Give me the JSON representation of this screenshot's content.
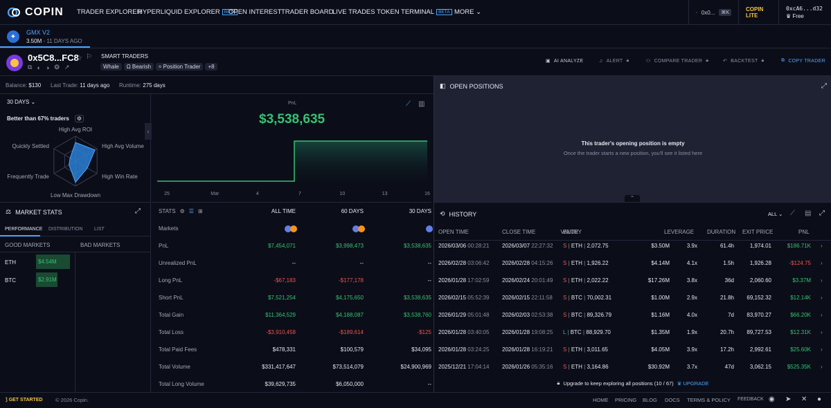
{
  "nav": {
    "brand": "COPIN",
    "items": [
      "TRADER EXPLORER",
      "HYPERLIQUID EXPLORER",
      "OPEN INTEREST",
      "TRADER BOARD",
      "LIVE TRADES",
      "TOKEN TERMINAL",
      "MORE"
    ],
    "beta": "BETA",
    "search": "0x0...",
    "shortcut": "⌘K",
    "lite": "COPIN LITE",
    "wallet": "0xcA6...d32",
    "plan": "Free"
  },
  "protocol": {
    "name": "GMX V2",
    "volume": "3.50M",
    "ago": "11 DAYS AGO"
  },
  "trader": {
    "address": "0x5C8...FC8",
    "badge": "SMART TRADERS",
    "tags": [
      "Whale",
      "Ω Bearish",
      "≈ Position Trader"
    ],
    "more_tags": "+8"
  },
  "actions": [
    "AI ANALYZE",
    "ALERT",
    "COMPARE TRADER",
    "BACKTEST",
    "COPY TRADER"
  ],
  "balance": {
    "balance_label": "Balance:",
    "balance": "$130",
    "last_label": "Last Trade:",
    "last": "11 days ago",
    "runtime_label": "Runtime:",
    "runtime": "275 days"
  },
  "period": "30 DAYS",
  "radar": {
    "better": "Better than 67% traders",
    "axes": [
      "High Avg ROI",
      "High Avg Volume",
      "High Win Rate",
      "Low Max Drawdown",
      "Frequently Trade",
      "Quickly Settled"
    ],
    "values": [
      0.75,
      0.9,
      0.55,
      0.85,
      0.3,
      0.25
    ]
  },
  "pnl_chart": {
    "label": "PnL",
    "value": "$3,538,635",
    "ticks": [
      "25",
      "Mar",
      "4",
      "7",
      "10",
      "13",
      "16"
    ]
  },
  "chart_data": {
    "type": "area",
    "title": "PnL",
    "x": [
      "25",
      "Mar",
      "4",
      "7",
      "10",
      "13",
      "16"
    ],
    "values": [
      0,
      0,
      0,
      3538635,
      3538635,
      3538635,
      3538635
    ],
    "step_after_index": 3
  },
  "open_positions": {
    "title": "OPEN POSITIONS",
    "empty": "This trader's opening position is empty",
    "hint": "Once the trader starts a new position, you'll see it listed here"
  },
  "market_stats": {
    "title": "MARKET STATS",
    "tabs": [
      "PERFORMANCE",
      "DISTRIBUTION",
      "LIST"
    ],
    "good": "GOOD MARKETS",
    "bad": "BAD MARKETS",
    "rows": [
      {
        "sym": "ETH",
        "val": "$4.54M"
      },
      {
        "sym": "BTC",
        "val": "$2.91M"
      }
    ]
  },
  "stats": {
    "title": "STATS",
    "cols": [
      "ALL TIME",
      "60 DAYS",
      "30 DAYS"
    ],
    "rows": [
      {
        "label": "Markets",
        "v": [
          "",
          "",
          ""
        ]
      },
      {
        "label": "PnL",
        "v": [
          "$7,454,071",
          "$3,998,473",
          "$3,538,635"
        ],
        "c": [
          "pos",
          "pos",
          "pos"
        ]
      },
      {
        "label": "Unrealized PnL",
        "v": [
          "--",
          "--",
          "--"
        ],
        "c": [
          "",
          "",
          ""
        ]
      },
      {
        "label": "Long PnL",
        "v": [
          "-$67,183",
          "-$177,178",
          "--"
        ],
        "c": [
          "neg",
          "neg",
          ""
        ]
      },
      {
        "label": "Short PnL",
        "v": [
          "$7,521,254",
          "$4,175,650",
          "$3,538,635"
        ],
        "c": [
          "pos",
          "pos",
          "pos"
        ]
      },
      {
        "label": "Total Gain",
        "v": [
          "$11,364,529",
          "$4,188,087",
          "$3,538,760"
        ],
        "c": [
          "pos",
          "pos",
          "pos"
        ]
      },
      {
        "label": "Total Loss",
        "v": [
          "-$3,910,458",
          "-$189,614",
          "-$125"
        ],
        "c": [
          "neg",
          "neg",
          "neg"
        ]
      },
      {
        "label": "Total Paid Fees",
        "v": [
          "$478,331",
          "$100,579",
          "$34,095"
        ],
        "c": [
          "",
          "",
          ""
        ]
      },
      {
        "label": "Total Volume",
        "v": [
          "$331,417,647",
          "$73,514,079",
          "$24,900,969"
        ],
        "c": [
          "",
          "",
          ""
        ]
      },
      {
        "label": "Total Long Volume",
        "v": [
          "$39,629,735",
          "$6,050,000",
          "--"
        ],
        "c": [
          "",
          "",
          ""
        ]
      }
    ]
  },
  "history": {
    "title": "HISTORY",
    "filter": "ALL",
    "cols": [
      "OPEN TIME",
      "CLOSE TIME",
      "ENTRY",
      "VALUE",
      "LEVERAGE",
      "DURATION",
      "EXIT PRICE",
      "PNL"
    ],
    "rows": [
      {
        "od": "2026/03/06",
        "ot": "00:28:21",
        "cd": "2026/03/07",
        "ct": "22:27:32",
        "side": "S",
        "sym": "ETH",
        "price": "2,072.75",
        "value": "$3.50M",
        "lev": "3.9x",
        "dur": "61.4h",
        "exit": "1,974.01",
        "pnl": "$186.71K",
        "pc": "pos"
      },
      {
        "od": "2026/02/28",
        "ot": "03:06:42",
        "cd": "2026/02/28",
        "ct": "04:15:26",
        "side": "S",
        "sym": "ETH",
        "price": "1,926.22",
        "value": "$4.14M",
        "lev": "4.1x",
        "dur": "1.5h",
        "exit": "1,926.28",
        "pnl": "-$124.75",
        "pc": "neg"
      },
      {
        "od": "2026/01/28",
        "ot": "17:02:59",
        "cd": "2026/02/24",
        "ct": "20:01:49",
        "side": "S",
        "sym": "ETH",
        "price": "2,022.22",
        "value": "$17.26M",
        "lev": "3.8x",
        "dur": "36d",
        "exit": "2,060.60",
        "pnl": "$3.37M",
        "pc": "pos"
      },
      {
        "od": "2026/02/15",
        "ot": "05:52:39",
        "cd": "2026/02/15",
        "ct": "22:11:58",
        "side": "S",
        "sym": "BTC",
        "price": "70,002.31",
        "value": "$1.00M",
        "lev": "2.9x",
        "dur": "21.8h",
        "exit": "69,152.32",
        "pnl": "$12.14K",
        "pc": "pos"
      },
      {
        "od": "2026/01/29",
        "ot": "05:01:48",
        "cd": "2026/02/03",
        "ct": "02:53:38",
        "side": "S",
        "sym": "BTC",
        "price": "89,326.79",
        "value": "$1.16M",
        "lev": "4.0x",
        "dur": "7d",
        "exit": "83,970.27",
        "pnl": "$66.20K",
        "pc": "pos"
      },
      {
        "od": "2026/01/28",
        "ot": "03:40:05",
        "cd": "2026/01/28",
        "ct": "19:08:25",
        "side": "L",
        "sym": "BTC",
        "price": "88,929.70",
        "value": "$1.35M",
        "lev": "1.9x",
        "dur": "20.7h",
        "exit": "89,727.53",
        "pnl": "$12.31K",
        "pc": "pos"
      },
      {
        "od": "2026/01/28",
        "ot": "03:24:25",
        "cd": "2026/01/28",
        "ct": "16:19:21",
        "side": "S",
        "sym": "ETH",
        "price": "3,011.65",
        "value": "$4.05M",
        "lev": "3.9x",
        "dur": "17.2h",
        "exit": "2,992.61",
        "pnl": "$25.60K",
        "pc": "pos"
      },
      {
        "od": "2025/12/21",
        "ot": "17:04:14",
        "cd": "2026/01/26",
        "ct": "05:35:16",
        "side": "S",
        "sym": "ETH",
        "price": "3,164.86",
        "value": "$30.92M",
        "lev": "3.7x",
        "dur": "47d",
        "exit": "3,062.15",
        "pnl": "$525.35K",
        "pc": "pos"
      }
    ],
    "upgrade_text": "Upgrade to keep exploring all positions (10 / 67)",
    "upgrade_btn": "UPGRADE"
  },
  "footer": {
    "get_started": "GET STARTED",
    "copyright": "© 2026 Copin.",
    "links": [
      "HOME",
      "PRICING",
      "BLOG",
      "DOCS",
      "TERMS & POLICY",
      "FEEDBACK"
    ]
  }
}
